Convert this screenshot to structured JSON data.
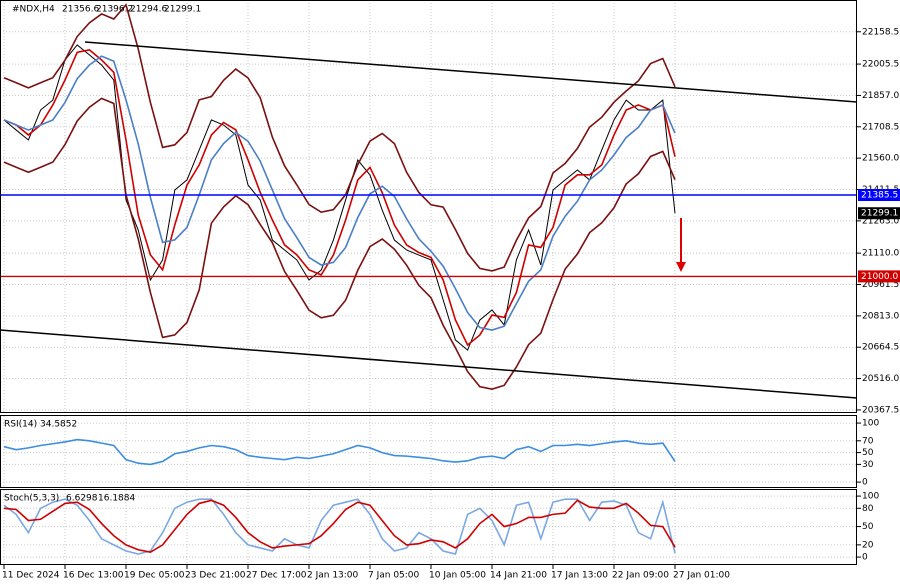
{
  "chart_data": [
    {
      "type": "line",
      "symbol": "#NDX,H4",
      "ohlc": [
        21356.6,
        21396.2,
        21294.6,
        21299.1
      ],
      "categories": [
        "11 Dec 2024",
        null,
        null,
        null,
        null,
        "16 Dec 13:00",
        null,
        null,
        null,
        null,
        "19 Dec 05:00",
        null,
        null,
        null,
        null,
        "23 Dec 21:00",
        null,
        null,
        null,
        null,
        "27 Dec 17:00",
        null,
        null,
        null,
        null,
        "2 Jan 13:00",
        null,
        null,
        null,
        null,
        "7 Jan 05:00",
        null,
        null,
        null,
        null,
        "10 Jan 05:00",
        null,
        null,
        null,
        null,
        "14 Jan 21:00",
        null,
        null,
        null,
        null,
        "17 Jan 13:00",
        null,
        null,
        null,
        null,
        "22 Jan 09:00",
        null,
        null,
        null,
        null,
        "27 Jan 01:00"
      ],
      "series": [
        {
          "color": "#000000",
          "values": [
            21741,
            21693,
            21646,
            21788,
            21835,
            22025,
            22096,
            22049,
            22001,
            21930,
            21362,
            21220,
            20983,
            21078,
            21409,
            21457,
            21599,
            21741,
            21717,
            21670,
            21433,
            21362,
            21172,
            21125,
            21078,
            20983,
            21030,
            21172,
            21362,
            21551,
            21480,
            21314,
            21172,
            21125,
            21101,
            21078,
            20888,
            20699,
            20651,
            20793,
            20841,
            20770,
            21078,
            21220,
            21054,
            21409,
            21457,
            21504,
            21457,
            21599,
            21741,
            21835,
            21788,
            21788,
            21835,
            21299
          ]
        },
        {
          "color": "#d00000",
          "values": [
            21741,
            21717,
            21670,
            21717,
            21812,
            21930,
            22061,
            22073,
            22025,
            21966,
            21646,
            21291,
            21102,
            21031,
            21244,
            21433,
            21528,
            21670,
            21729,
            21694,
            21552,
            21398,
            21267,
            21149,
            21102,
            21031,
            21007,
            21101,
            21267,
            21457,
            21516,
            21397,
            21243,
            21149,
            21113,
            21090,
            20983,
            20794,
            20675,
            20722,
            20817,
            20806,
            20924,
            21149,
            21137,
            21232,
            21433,
            21481,
            21481,
            21528,
            21670,
            21788,
            21812,
            21788,
            21812,
            21567
          ]
        },
        {
          "color": "#4a7fc8",
          "values": [
            21741,
            21717,
            21693,
            21717,
            21741,
            21824,
            21936,
            22001,
            22043,
            22019,
            21836,
            21628,
            21374,
            21161,
            21173,
            21232,
            21386,
            21552,
            21629,
            21682,
            21640,
            21546,
            21409,
            21273,
            21184,
            21090,
            21054,
            21066,
            21137,
            21279,
            21391,
            21427,
            21379,
            21273,
            21178,
            21119,
            21048,
            20942,
            20829,
            20758,
            20746,
            20764,
            20871,
            20977,
            21031,
            21190,
            21285,
            21356,
            21457,
            21504,
            21575,
            21658,
            21706,
            21788,
            21812,
            21678
          ]
        },
        {
          "color": "#7a1010",
          "values": [
            21941,
            21917,
            21893,
            21917,
            21941,
            22024,
            22136,
            22201,
            22243,
            22219,
            22286,
            22078,
            21824,
            21611,
            21623,
            21682,
            21836,
            21852,
            21929,
            21982,
            21940,
            21846,
            21659,
            21523,
            21434,
            21340,
            21304,
            21316,
            21387,
            21529,
            21641,
            21677,
            21629,
            21493,
            21398,
            21339,
            21328,
            21222,
            21109,
            21038,
            21026,
            21044,
            21171,
            21277,
            21331,
            21490,
            21535,
            21606,
            21707,
            21754,
            21825,
            21878,
            21926,
            22008,
            22032,
            21898
          ]
        },
        {
          "color": "#7a1010",
          "values": [
            21541,
            21517,
            21493,
            21517,
            21541,
            21624,
            21736,
            21801,
            21843,
            21819,
            21386,
            21178,
            20924,
            20711,
            20723,
            20782,
            20936,
            21252,
            21329,
            21382,
            21340,
            21246,
            21159,
            21023,
            20934,
            20840,
            20804,
            20816,
            20887,
            21029,
            21141,
            21177,
            21129,
            21053,
            20958,
            20899,
            20768,
            20662,
            20549,
            20478,
            20466,
            20484,
            20571,
            20677,
            20731,
            20890,
            21035,
            21106,
            21207,
            21254,
            21325,
            21438,
            21486,
            21568,
            21592,
            21458
          ]
        }
      ],
      "hlines": [
        {
          "value": 21385.5,
          "color": "#0000ff"
        },
        {
          "value": {
            "value": 21000,
            "label": "21000.0"
          },
          "color": "#d00000"
        }
      ],
      "price": {
        "value": 21299.1,
        "color": "#000000"
      },
      "ylim": [
        20353,
        22309
      ],
      "yticks": [
        22158.5,
        22005.5,
        {
          "value": 21857,
          "label": "21857.0"
        },
        21708.5,
        {
          "value": 21560,
          "label": "21560.0"
        },
        21411.5,
        {
          "value": 21263,
          "label": "21263.0"
        },
        {
          "value": 21110,
          "label": "21110.0"
        },
        20961.5,
        {
          "value": 20813,
          "label": "20813.0"
        },
        20664.5,
        {
          "value": 20516,
          "label": "20516.0"
        },
        20367.5
      ],
      "grid": true
    },
    {
      "type": "line",
      "name": "RSI(14)",
      "value": 34.5852,
      "series": [
        {
          "color": "#3b8ee0",
          "values": [
            60,
            55,
            58,
            62,
            65,
            68,
            72,
            70,
            66,
            62,
            38,
            32,
            30,
            35,
            48,
            52,
            58,
            62,
            60,
            55,
            45,
            42,
            40,
            38,
            42,
            40,
            44,
            48,
            55,
            62,
            58,
            50,
            45,
            44,
            42,
            40,
            36,
            34,
            36,
            42,
            44,
            40,
            55,
            60,
            52,
            62,
            62,
            64,
            62,
            65,
            68,
            70,
            66,
            64,
            66,
            35
          ]
        }
      ],
      "ylim": [
        -10,
        112
      ],
      "yticks": [
        100,
        70,
        50,
        30,
        0
      ],
      "grid": true
    },
    {
      "type": "line",
      "name": "Stoch(5,3,3)",
      "values_printed": [
        6.6298,
        16.1884
      ],
      "series": [
        {
          "color": "#7aa8e4",
          "values": [
            85,
            70,
            40,
            80,
            90,
            95,
            85,
            60,
            30,
            20,
            10,
            5,
            10,
            40,
            80,
            90,
            95,
            95,
            70,
            40,
            20,
            15,
            10,
            30,
            20,
            15,
            60,
            85,
            90,
            95,
            70,
            30,
            10,
            15,
            40,
            30,
            10,
            5,
            70,
            80,
            60,
            20,
            85,
            90,
            30,
            90,
            95,
            95,
            60,
            90,
            92,
            85,
            40,
            30,
            90,
            6.6298
          ]
        },
        {
          "color": "#d00000",
          "values": [
            80,
            78,
            60,
            62,
            75,
            88,
            90,
            78,
            55,
            35,
            20,
            12,
            8,
            20,
            45,
            70,
            88,
            93,
            85,
            65,
            40,
            25,
            15,
            18,
            20,
            22,
            35,
            55,
            78,
            90,
            85,
            60,
            35,
            20,
            22,
            28,
            25,
            15,
            30,
            55,
            70,
            50,
            55,
            65,
            65,
            70,
            72,
            93,
            82,
            80,
            80,
            88,
            72,
            52,
            50,
            16.1884
          ]
        }
      ],
      "ylim": [
        -13,
        110
      ],
      "yticks": [
        100,
        80,
        50,
        20,
        0
      ],
      "grid": true
    }
  ]
}
